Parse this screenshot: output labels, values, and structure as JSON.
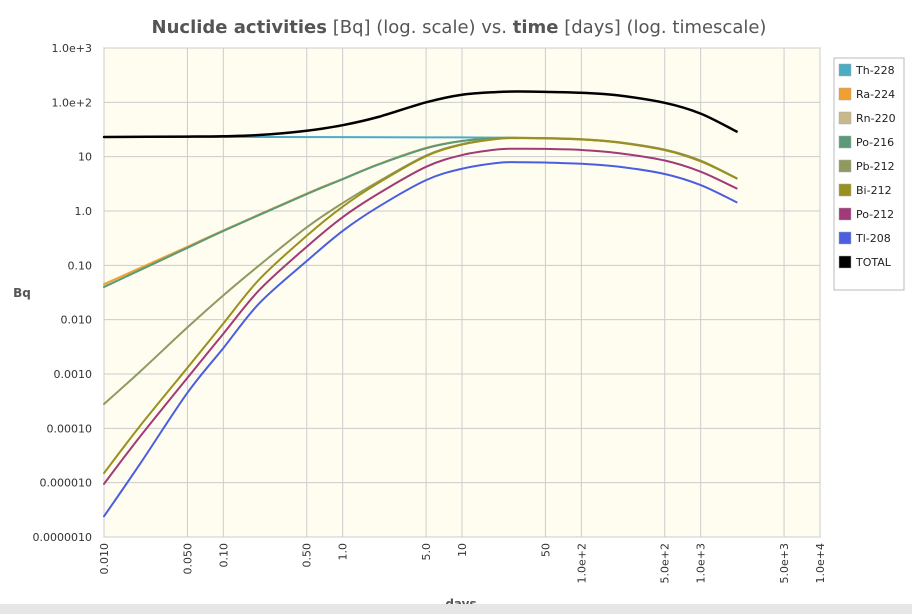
{
  "chart_data": {
    "type": "line",
    "title": {
      "parts": [
        {
          "text": "Nuclide activities",
          "bold": true
        },
        {
          "text": " [Bq] (log. scale) vs. ",
          "bold": false
        },
        {
          "text": "time",
          "bold": true
        },
        {
          "text": " [days] (log. timescale)",
          "bold": false
        }
      ]
    },
    "xlabel": "days",
    "ylabel": "Bq",
    "x_scale": "log",
    "y_scale": "log",
    "xlim": [
      0.01,
      10000
    ],
    "ylim": [
      1e-06,
      1000
    ],
    "grid": true,
    "legend_position": "right",
    "plot_background": "#fffdf0",
    "x_ticks": [
      {
        "value": 0.01,
        "label": "0.010"
      },
      {
        "value": 0.05,
        "label": "0.050"
      },
      {
        "value": 0.1,
        "label": "0.10"
      },
      {
        "value": 0.5,
        "label": "0.50"
      },
      {
        "value": 1,
        "label": "1.0"
      },
      {
        "value": 5,
        "label": "5.0"
      },
      {
        "value": 10,
        "label": "10"
      },
      {
        "value": 50,
        "label": "50"
      },
      {
        "value": 100,
        "label": "1.0e+2"
      },
      {
        "value": 500,
        "label": "5.0e+2"
      },
      {
        "value": 1000,
        "label": "1.0e+3"
      },
      {
        "value": 5000,
        "label": "5.0e+3"
      },
      {
        "value": 10000,
        "label": "1.0e+4"
      }
    ],
    "y_ticks": [
      {
        "value": 1000,
        "label": "1.0e+3"
      },
      {
        "value": 100,
        "label": "1.0e+2"
      },
      {
        "value": 10,
        "label": "10"
      },
      {
        "value": 1,
        "label": "1.0"
      },
      {
        "value": 0.1,
        "label": "0.10"
      },
      {
        "value": 0.01,
        "label": "0.010"
      },
      {
        "value": 0.001,
        "label": "0.0010"
      },
      {
        "value": 0.0001,
        "label": "0.00010"
      },
      {
        "value": 1e-05,
        "label": "0.000010"
      },
      {
        "value": 1e-06,
        "label": "0.0000010"
      }
    ],
    "series": [
      {
        "name": "Th-228",
        "color": "#4bacc6",
        "x": [
          0.01,
          0.1,
          1,
          5,
          10,
          20,
          30
        ],
        "y": [
          23,
          23,
          22.9,
          22.7,
          22.6,
          22.4,
          22.2
        ]
      },
      {
        "name": "Ra-224",
        "color": "#f0a030",
        "x": [
          0.01,
          0.05,
          0.1,
          0.5,
          1,
          2,
          5,
          10,
          20,
          30,
          50,
          100,
          200,
          500,
          1000,
          2000
        ],
        "y": [
          0.045,
          0.22,
          0.44,
          2.1,
          3.9,
          7.3,
          14.5,
          19.5,
          22,
          22.3,
          22,
          21,
          18.6,
          13.5,
          8.5,
          4
        ]
      },
      {
        "name": "Rn-220",
        "color": "#c8b88a",
        "x": [
          0.01,
          0.05,
          0.1,
          0.5,
          1,
          2,
          5,
          10,
          20,
          30,
          50,
          100,
          200,
          500,
          1000,
          2000
        ],
        "y": [
          0.04,
          0.21,
          0.43,
          2.05,
          3.85,
          7.2,
          14.3,
          19.4,
          22,
          22.2,
          21.9,
          20.9,
          18.5,
          13.4,
          8.4,
          4
        ]
      },
      {
        "name": "Po-216",
        "color": "#5a9a78",
        "x": [
          0.01,
          0.05,
          0.1,
          0.5,
          1,
          2,
          5,
          10,
          20,
          30,
          50,
          100,
          200,
          500,
          1000,
          2000
        ],
        "y": [
          0.04,
          0.21,
          0.43,
          2.05,
          3.85,
          7.2,
          14.3,
          19.4,
          22,
          22.2,
          21.9,
          20.9,
          18.5,
          13.4,
          8.4,
          4
        ]
      },
      {
        "name": "Pb-212",
        "color": "#8f9a60",
        "x": [
          0.01,
          0.02,
          0.05,
          0.1,
          0.2,
          0.5,
          1,
          2,
          5,
          10,
          20,
          30,
          50,
          100,
          200,
          500,
          1000,
          2000
        ],
        "y": [
          0.00028,
          0.0011,
          0.0072,
          0.028,
          0.1,
          0.5,
          1.4,
          3.5,
          10.5,
          17,
          21.5,
          22,
          21.8,
          20.8,
          18.4,
          13.3,
          8.3,
          4
        ]
      },
      {
        "name": "Bi-212",
        "color": "#9a9020",
        "x": [
          0.01,
          0.02,
          0.05,
          0.1,
          0.2,
          0.5,
          1,
          2,
          5,
          10,
          20,
          30,
          50,
          100,
          200,
          500,
          1000,
          2000
        ],
        "y": [
          1.5e-05,
          0.00011,
          0.0013,
          0.0085,
          0.055,
          0.35,
          1.2,
          3.3,
          10.2,
          16.7,
          21.3,
          21.9,
          21.7,
          20.7,
          18.3,
          13.2,
          8.2,
          4
        ]
      },
      {
        "name": "Po-212",
        "color": "#a03a78",
        "x": [
          0.01,
          0.02,
          0.05,
          0.1,
          0.2,
          0.5,
          1,
          2,
          5,
          10,
          20,
          30,
          50,
          100,
          200,
          500,
          1000,
          2000
        ],
        "y": [
          9.5e-06,
          7e-05,
          0.00085,
          0.0055,
          0.035,
          0.22,
          0.77,
          2.1,
          6.5,
          10.7,
          13.6,
          14,
          13.9,
          13.3,
          11.7,
          8.5,
          5.3,
          2.6
        ]
      },
      {
        "name": "Tl-208",
        "color": "#4a5ee0",
        "x": [
          0.01,
          0.02,
          0.05,
          0.1,
          0.2,
          0.5,
          1,
          2,
          5,
          10,
          20,
          30,
          50,
          100,
          200,
          500,
          1000,
          2000
        ],
        "y": [
          2.4e-06,
          2.2e-05,
          0.00045,
          0.003,
          0.02,
          0.12,
          0.43,
          1.2,
          3.7,
          6,
          7.7,
          7.9,
          7.8,
          7.4,
          6.6,
          4.8,
          3,
          1.45
        ]
      },
      {
        "name": "TOTAL",
        "color": "#000000",
        "x": [
          0.01,
          0.05,
          0.1,
          0.2,
          0.5,
          1,
          2,
          5,
          10,
          20,
          30,
          50,
          100,
          200,
          500,
          1000,
          2000
        ],
        "y": [
          23,
          23.4,
          23.8,
          25,
          30,
          38,
          54,
          100,
          138,
          155,
          158,
          156,
          150,
          135,
          98,
          62,
          29
        ]
      }
    ]
  }
}
